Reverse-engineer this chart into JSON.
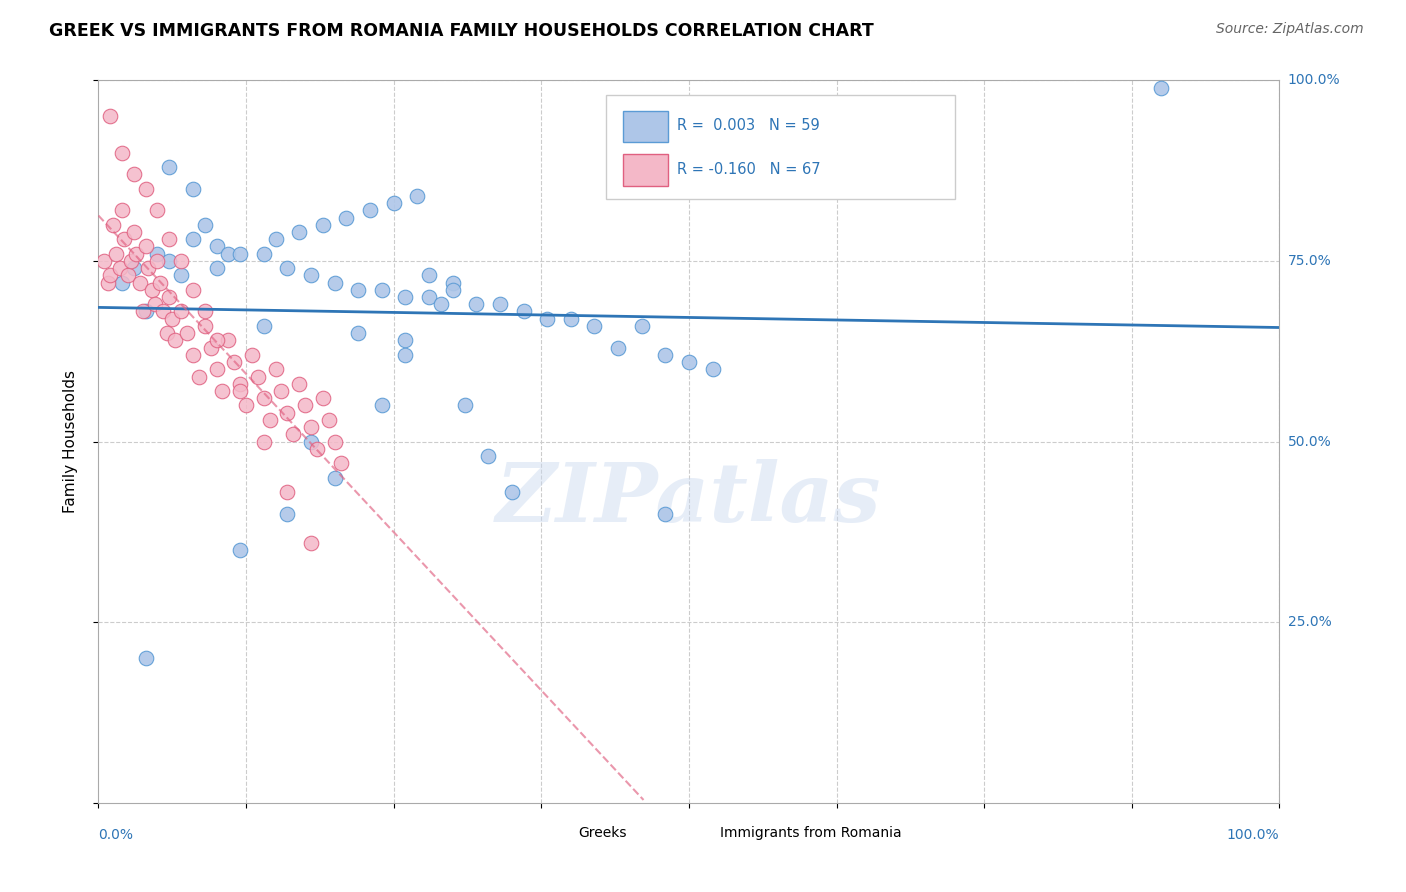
{
  "title": "GREEK VS IMMIGRANTS FROM ROMANIA FAMILY HOUSEHOLDS CORRELATION CHART",
  "source": "Source: ZipAtlas.com",
  "ylabel": "Family Households",
  "watermark": "ZIPatlas",
  "blue_r": 0.003,
  "blue_n": 59,
  "pink_r": -0.16,
  "pink_n": 67,
  "xlim": [
    0,
    1.0
  ],
  "ylim": [
    0,
    1.0
  ],
  "blue_scatter_color": "#aec6e8",
  "blue_edge_color": "#5b9bd5",
  "blue_line_color": "#2e75b6",
  "pink_scatter_color": "#f4b8c8",
  "pink_edge_color": "#e06080",
  "pink_line_color": "#e06080",
  "grid_color": "#cccccc",
  "title_color": "#000000",
  "source_color": "#666666",
  "axis_label_color": "#2e75b6",
  "bottom_legend_labels": [
    "Greeks",
    "Immigrants from Romania"
  ],
  "greek_x": [
    0.02,
    0.03,
    0.04,
    0.05,
    0.06,
    0.07,
    0.08,
    0.09,
    0.1,
    0.11,
    0.12,
    0.14,
    0.15,
    0.16,
    0.17,
    0.18,
    0.19,
    0.2,
    0.21,
    0.22,
    0.23,
    0.24,
    0.25,
    0.26,
    0.27,
    0.28,
    0.29,
    0.3,
    0.31,
    0.32,
    0.33,
    0.34,
    0.35,
    0.36,
    0.38,
    0.4,
    0.42,
    0.44,
    0.46,
    0.48,
    0.5,
    0.52,
    0.24,
    0.28,
    0.2,
    0.16,
    0.12,
    0.22,
    0.18,
    0.14,
    0.26,
    0.3,
    0.1,
    0.08,
    0.06,
    0.04,
    0.26,
    0.48,
    0.9
  ],
  "greek_y": [
    0.72,
    0.74,
    0.68,
    0.76,
    0.75,
    0.73,
    0.78,
    0.8,
    0.77,
    0.76,
    0.76,
    0.76,
    0.78,
    0.74,
    0.79,
    0.73,
    0.8,
    0.72,
    0.81,
    0.65,
    0.82,
    0.71,
    0.83,
    0.64,
    0.84,
    0.7,
    0.69,
    0.72,
    0.55,
    0.69,
    0.48,
    0.69,
    0.43,
    0.68,
    0.67,
    0.67,
    0.66,
    0.63,
    0.66,
    0.62,
    0.61,
    0.6,
    0.55,
    0.73,
    0.45,
    0.4,
    0.35,
    0.71,
    0.5,
    0.66,
    0.62,
    0.71,
    0.74,
    0.85,
    0.88,
    0.2,
    0.7,
    0.4,
    0.99
  ],
  "romania_x": [
    0.005,
    0.008,
    0.01,
    0.012,
    0.015,
    0.018,
    0.02,
    0.022,
    0.025,
    0.028,
    0.03,
    0.032,
    0.035,
    0.038,
    0.04,
    0.042,
    0.045,
    0.048,
    0.05,
    0.052,
    0.055,
    0.058,
    0.06,
    0.062,
    0.065,
    0.07,
    0.075,
    0.08,
    0.085,
    0.09,
    0.095,
    0.1,
    0.105,
    0.11,
    0.115,
    0.12,
    0.125,
    0.13,
    0.135,
    0.14,
    0.145,
    0.15,
    0.155,
    0.16,
    0.165,
    0.17,
    0.175,
    0.18,
    0.185,
    0.19,
    0.195,
    0.2,
    0.205,
    0.01,
    0.02,
    0.03,
    0.04,
    0.05,
    0.06,
    0.07,
    0.08,
    0.09,
    0.1,
    0.12,
    0.14,
    0.16,
    0.18
  ],
  "romania_y": [
    0.75,
    0.72,
    0.73,
    0.8,
    0.76,
    0.74,
    0.82,
    0.78,
    0.73,
    0.75,
    0.79,
    0.76,
    0.72,
    0.68,
    0.77,
    0.74,
    0.71,
    0.69,
    0.75,
    0.72,
    0.68,
    0.65,
    0.7,
    0.67,
    0.64,
    0.68,
    0.65,
    0.62,
    0.59,
    0.66,
    0.63,
    0.6,
    0.57,
    0.64,
    0.61,
    0.58,
    0.55,
    0.62,
    0.59,
    0.56,
    0.53,
    0.6,
    0.57,
    0.54,
    0.51,
    0.58,
    0.55,
    0.52,
    0.49,
    0.56,
    0.53,
    0.5,
    0.47,
    0.95,
    0.9,
    0.87,
    0.85,
    0.82,
    0.78,
    0.75,
    0.71,
    0.68,
    0.64,
    0.57,
    0.5,
    0.43,
    0.36
  ]
}
